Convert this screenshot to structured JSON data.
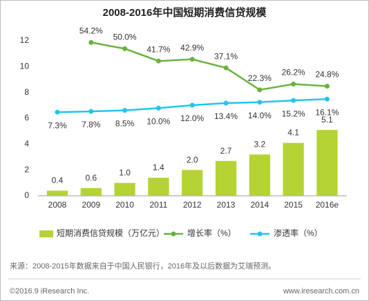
{
  "chart_data": {
    "type": "bar",
    "title": "2008-2016年中国短期消费信贷规模",
    "categories": [
      "2008",
      "2009",
      "2010",
      "2011",
      "2012",
      "2013",
      "2014",
      "2015",
      "2016e"
    ],
    "ylim": [
      0,
      12
    ],
    "yticks": [
      0,
      2,
      4,
      6,
      8,
      10,
      12
    ],
    "y2lim": [
      -49,
      55.3
    ],
    "series": [
      {
        "name": "短期消费信贷规模（万亿元）",
        "type": "bar",
        "color": "#b5d334",
        "values": [
          0.4,
          0.6,
          1,
          1.4,
          2,
          2.7,
          3.2,
          4.1,
          5.1
        ],
        "value_labels": [
          "0.4",
          "0.6",
          "1.0",
          "1.4",
          "2.0",
          "2.7",
          "3.2",
          "4.1",
          "5.1"
        ]
      },
      {
        "name": "增长率（%）",
        "type": "line",
        "axis": "y2",
        "color": "#6ab23e",
        "values": [
          null,
          54.2,
          50,
          41.7,
          42.9,
          37.1,
          22.3,
          26.2,
          24.8
        ],
        "value_labels": [
          null,
          "54.2%",
          "50.0%",
          "41.7%",
          "42.9%",
          "37.1%",
          "22.3%",
          "26.2%",
          "24.8%"
        ]
      },
      {
        "name": "渗透率（%）",
        "type": "line",
        "axis": "y2",
        "color": "#22c4ee",
        "values": [
          7.3,
          7.8,
          8.5,
          10,
          12,
          13.4,
          14,
          15.2,
          16.1
        ],
        "value_labels": [
          "7.3%",
          "7.8%",
          "8.5%",
          "10.0%",
          "12.0%",
          "13.4%",
          "14.0%",
          "15.2%",
          "16.1%"
        ]
      }
    ],
    "note": "来源：2008-2015年数据来自于中国人民银行，2016年及以后数据为艾瑞预测。",
    "footer_left": "©2016.9 iResearch Inc.",
    "footer_right": "www.iresearch.com.cn"
  }
}
